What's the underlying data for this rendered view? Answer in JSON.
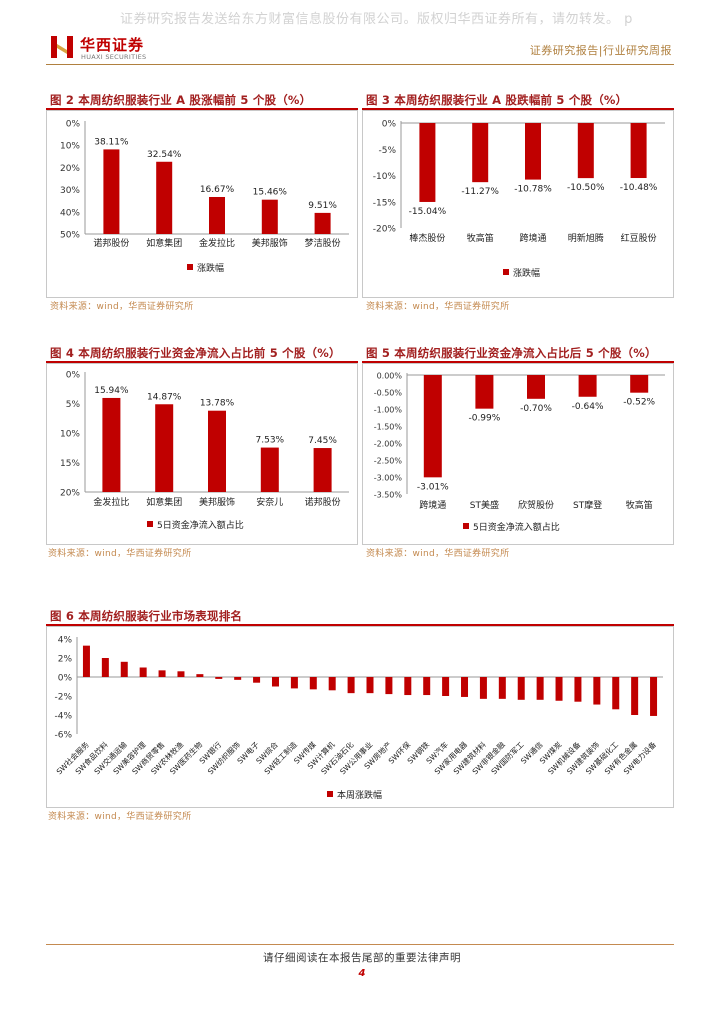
{
  "header": {
    "watermark": "证券研究报告发送给东方财富信息股份有限公司。版权归华西证券所有，请勿转发。 p",
    "logo_cn": "华西证券",
    "logo_en": "HUAXI SECURITIES",
    "report_type": "证券研究报告|行业研究周报"
  },
  "colors": {
    "bar": "#c00000",
    "accent": "#a21f1f",
    "source": "#c48a50"
  },
  "figures": {
    "fig2": {
      "title": "图 2  本周纺织服装行业 A 股涨幅前 5 个股（%）",
      "source": "资料来源：wind，华西证券研究所"
    },
    "fig3": {
      "title": "图 3  本周纺织服装行业 A 股跌幅前 5 个股（%）",
      "source": "资料来源：wind，华西证券研究所"
    },
    "fig4": {
      "title": "图 4  本周纺织服装行业资金净流入占比前 5 个股（%）",
      "source": "资料来源：wind，华西证券研究所"
    },
    "fig5": {
      "title": "图 5  本周纺织服装行业资金净流入占比后 5 个股（%）",
      "source": "资料来源：wind，华西证券研究所"
    },
    "fig6": {
      "title": "图 6  本周纺织服装行业市场表现排名",
      "source": "资料来源：wind，华西证券研究所"
    }
  },
  "chart_data": [
    {
      "id": "fig2",
      "type": "bar",
      "categories": [
        "诺邦股份",
        "如意集团",
        "金发拉比",
        "美邦服饰",
        "梦洁股份"
      ],
      "values": [
        38.11,
        32.54,
        16.67,
        15.46,
        9.51
      ],
      "labels": [
        "38.11%",
        "32.54%",
        "16.67%",
        "15.46%",
        "9.51%"
      ],
      "yticks": [
        "0%",
        "10%",
        "20%",
        "30%",
        "40%",
        "50%"
      ],
      "ylim": [
        0,
        50
      ],
      "legend": "涨跌幅"
    },
    {
      "id": "fig3",
      "type": "bar",
      "categories": [
        "棒杰股份",
        "牧高笛",
        "跨境通",
        "明新旭腾",
        "红豆股份"
      ],
      "values": [
        -15.04,
        -11.27,
        -10.78,
        -10.5,
        -10.48
      ],
      "labels": [
        "-15.04%",
        "-11.27%",
        "-10.78%",
        "-10.50%",
        "-10.48%"
      ],
      "yticks": [
        "0%",
        "-5%",
        "-10%",
        "-15%",
        "-20%"
      ],
      "ylim": [
        -20,
        0
      ],
      "legend": "涨跌幅"
    },
    {
      "id": "fig4",
      "type": "bar",
      "categories": [
        "金发拉比",
        "如意集团",
        "美邦服饰",
        "安奈儿",
        "诺邦股份"
      ],
      "values": [
        15.94,
        14.87,
        13.78,
        7.53,
        7.45
      ],
      "labels": [
        "15.94%",
        "14.87%",
        "13.78%",
        "7.53%",
        "7.45%"
      ],
      "yticks": [
        "0%",
        "5%",
        "10%",
        "15%",
        "20%"
      ],
      "ylim": [
        0,
        20
      ],
      "legend": "5日资金净流入额占比"
    },
    {
      "id": "fig5",
      "type": "bar",
      "categories": [
        "跨境通",
        "ST美盛",
        "欣贺股份",
        "ST摩登",
        "牧高笛"
      ],
      "values": [
        -3.01,
        -0.99,
        -0.7,
        -0.64,
        -0.52
      ],
      "labels": [
        "-3.01%",
        "-0.99%",
        "-0.70%",
        "-0.64%",
        "-0.52%"
      ],
      "yticks": [
        "0.00%",
        "-0.50%",
        "-1.00%",
        "-1.50%",
        "-2.00%",
        "-2.50%",
        "-3.00%",
        "-3.50%"
      ],
      "ylim": [
        -3.5,
        0
      ],
      "legend": "5日资金净流入额占比"
    },
    {
      "id": "fig6",
      "type": "bar",
      "categories": [
        "SW社会服务",
        "SW食品饮料",
        "SW交通运输",
        "SW美容护理",
        "SW商贸零售",
        "SW农林牧渔",
        "SW医药生物",
        "SW银行",
        "SW纺织服饰",
        "SW电子",
        "SW综合",
        "SW轻工制造",
        "SW传媒",
        "SW计算机",
        "SW石油石化",
        "SW公用事业",
        "SW房地产",
        "SW环保",
        "SW钢铁",
        "SW汽车",
        "SW家用电器",
        "SW建筑材料",
        "SW非银金融",
        "SW国防军工",
        "SW通信",
        "SW煤炭",
        "SW机械设备",
        "SW建筑装饰",
        "SW基础化工",
        "SW有色金属",
        "SW电力设备"
      ],
      "values": [
        3.3,
        2.0,
        1.6,
        1.0,
        0.7,
        0.6,
        0.3,
        -0.2,
        -0.3,
        -0.6,
        -1.0,
        -1.2,
        -1.3,
        -1.4,
        -1.7,
        -1.7,
        -1.8,
        -1.9,
        -1.9,
        -2.0,
        -2.1,
        -2.3,
        -2.3,
        -2.4,
        -2.4,
        -2.5,
        -2.6,
        -2.9,
        -3.4,
        -4.0,
        -4.1
      ],
      "yticks": [
        "4%",
        "2%",
        "0%",
        "-2%",
        "-4%",
        "-6%"
      ],
      "ylim": [
        -6,
        4
      ],
      "legend": "本周涨跌幅"
    }
  ],
  "footer": {
    "disclaimer": "请仔细阅读在本报告尾部的重要法律声明",
    "page_number": "4"
  }
}
